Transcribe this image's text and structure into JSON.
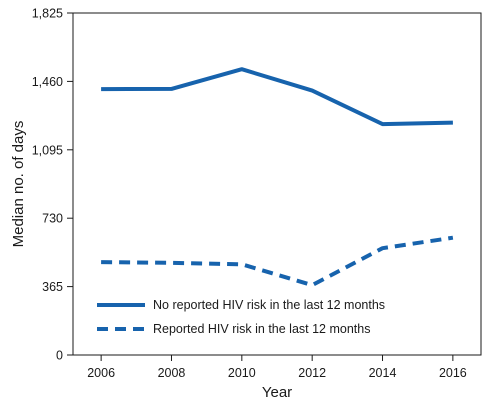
{
  "chart_data": {
    "type": "line",
    "title": "",
    "xlabel": "Year",
    "ylabel": "Median no. of days",
    "x": [
      2006,
      2008,
      2010,
      2012,
      2014,
      2016
    ],
    "x_tick_labels": [
      "2006",
      "2008",
      "2010",
      "2012",
      "2014",
      "2016"
    ],
    "y_tick_values": [
      0,
      365,
      730,
      1095,
      1460,
      1825
    ],
    "y_tick_labels": [
      "0",
      "365",
      "730",
      "1,095",
      "1,460",
      "1,825"
    ],
    "ylim": [
      0,
      1825
    ],
    "xlim": [
      2005.2,
      2016.8
    ],
    "grid": false,
    "legend_position": "bottom-left",
    "series": [
      {
        "name": "No reported HIV risk in the last 12 months",
        "style": "solid",
        "color": "#1763ad",
        "values": [
          1419,
          1420,
          1525,
          1411,
          1232,
          1240
        ]
      },
      {
        "name": "Reported HIV risk in the last 12 months",
        "style": "dashed",
        "color": "#1763ad",
        "values": [
          496,
          492,
          484,
          373,
          570,
          626
        ]
      }
    ]
  }
}
